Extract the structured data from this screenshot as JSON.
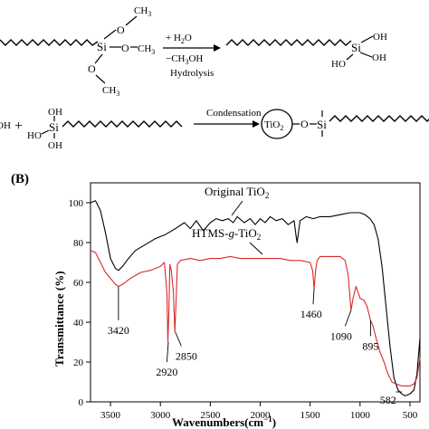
{
  "scheme": {
    "reaction1": {
      "si_label": "Si",
      "o_label": "O",
      "ch3_label": "CH",
      "ch3_sub": "3",
      "reagent_plus": "+ H",
      "reagent_h2o_sub": "2",
      "reagent_h2o_tail": "O",
      "byproduct": "−CH",
      "byproduct_sub": "3",
      "byproduct_tail": "OH",
      "condition": "Hydrolysis",
      "oh_label": "OH",
      "ho_label": "HO"
    },
    "reaction2": {
      "left_oh": "OH",
      "plus": "+",
      "condition": "Condensation",
      "tio2": "TiO",
      "tio2_sub": "2"
    }
  },
  "panel_label": "(B)",
  "chart_data": {
    "type": "line",
    "xlabel": "Wavenumbers(cm",
    "xlabel_sup": "−1",
    "xlabel_tail": ")",
    "ylabel": "Transmittance (%)",
    "xlim": [
      3700,
      400
    ],
    "ylim": [
      0,
      110
    ],
    "x_ticks": [
      3500,
      3000,
      2500,
      2000,
      1500,
      1000,
      500
    ],
    "y_ticks": [
      0,
      20,
      40,
      60,
      80,
      100
    ],
    "grid": false,
    "series": [
      {
        "name": "Original TiO",
        "name_sub": "2",
        "color": "#000000",
        "points": [
          [
            3700,
            100
          ],
          [
            3650,
            101
          ],
          [
            3600,
            96
          ],
          [
            3550,
            85
          ],
          [
            3500,
            72
          ],
          [
            3450,
            67
          ],
          [
            3420,
            66
          ],
          [
            3380,
            68
          ],
          [
            3320,
            72
          ],
          [
            3250,
            76
          ],
          [
            3150,
            79
          ],
          [
            3050,
            82
          ],
          [
            2950,
            84
          ],
          [
            2850,
            87
          ],
          [
            2760,
            90
          ],
          [
            2700,
            87
          ],
          [
            2640,
            91
          ],
          [
            2570,
            86
          ],
          [
            2500,
            90
          ],
          [
            2440,
            92
          ],
          [
            2380,
            91
          ],
          [
            2320,
            92
          ],
          [
            2270,
            90
          ],
          [
            2230,
            93
          ],
          [
            2160,
            90
          ],
          [
            2100,
            92
          ],
          [
            2050,
            89
          ],
          [
            2000,
            92
          ],
          [
            1950,
            90
          ],
          [
            1900,
            93
          ],
          [
            1840,
            91
          ],
          [
            1780,
            92
          ],
          [
            1720,
            89
          ],
          [
            1660,
            91
          ],
          [
            1640,
            83
          ],
          [
            1630,
            80
          ],
          [
            1615,
            86
          ],
          [
            1600,
            91
          ],
          [
            1540,
            93
          ],
          [
            1470,
            92
          ],
          [
            1400,
            93
          ],
          [
            1300,
            93
          ],
          [
            1200,
            94
          ],
          [
            1100,
            95
          ],
          [
            1000,
            95
          ],
          [
            950,
            94
          ],
          [
            900,
            92
          ],
          [
            860,
            89
          ],
          [
            820,
            82
          ],
          [
            780,
            68
          ],
          [
            740,
            48
          ],
          [
            700,
            28
          ],
          [
            660,
            12
          ],
          [
            620,
            6
          ],
          [
            582,
            4
          ],
          [
            550,
            3
          ],
          [
            500,
            4
          ],
          [
            460,
            6
          ],
          [
            430,
            14
          ],
          [
            400,
            32
          ]
        ]
      },
      {
        "name": "HTMS-",
        "name_italic": "g",
        "name_tail": "-TiO",
        "name_sub": "2",
        "color": "#d9292b",
        "points": [
          [
            3700,
            76
          ],
          [
            3650,
            75
          ],
          [
            3600,
            70
          ],
          [
            3550,
            65
          ],
          [
            3500,
            62
          ],
          [
            3450,
            59
          ],
          [
            3420,
            58
          ],
          [
            3380,
            59
          ],
          [
            3300,
            62
          ],
          [
            3200,
            65
          ],
          [
            3100,
            66
          ],
          [
            3000,
            68
          ],
          [
            2960,
            70
          ],
          [
            2935,
            55
          ],
          [
            2925,
            30
          ],
          [
            2915,
            45
          ],
          [
            2905,
            69
          ],
          [
            2890,
            66
          ],
          [
            2870,
            55
          ],
          [
            2855,
            35
          ],
          [
            2845,
            48
          ],
          [
            2830,
            69
          ],
          [
            2800,
            71
          ],
          [
            2700,
            72
          ],
          [
            2600,
            71
          ],
          [
            2500,
            72
          ],
          [
            2400,
            72
          ],
          [
            2300,
            73
          ],
          [
            2200,
            72
          ],
          [
            2100,
            72
          ],
          [
            2000,
            72
          ],
          [
            1900,
            72
          ],
          [
            1800,
            72
          ],
          [
            1700,
            71
          ],
          [
            1600,
            71
          ],
          [
            1500,
            70
          ],
          [
            1475,
            66
          ],
          [
            1460,
            57
          ],
          [
            1445,
            66
          ],
          [
            1430,
            71
          ],
          [
            1400,
            73
          ],
          [
            1300,
            73
          ],
          [
            1200,
            73
          ],
          [
            1150,
            71
          ],
          [
            1120,
            64
          ],
          [
            1090,
            46
          ],
          [
            1070,
            52
          ],
          [
            1040,
            58
          ],
          [
            1000,
            52
          ],
          [
            960,
            51
          ],
          [
            930,
            48
          ],
          [
            895,
            41
          ],
          [
            870,
            38
          ],
          [
            840,
            32
          ],
          [
            800,
            25
          ],
          [
            760,
            20
          ],
          [
            720,
            14
          ],
          [
            680,
            10
          ],
          [
            640,
            9
          ],
          [
            582,
            8
          ],
          [
            540,
            8
          ],
          [
            500,
            8
          ],
          [
            460,
            9
          ],
          [
            430,
            12
          ],
          [
            400,
            22
          ]
        ]
      }
    ],
    "annotations": [
      {
        "label": "3420"
      },
      {
        "label": "2920"
      },
      {
        "label": "2850"
      },
      {
        "label": "1460"
      },
      {
        "label": "1090"
      },
      {
        "label": "895"
      },
      {
        "label": "582"
      }
    ]
  }
}
